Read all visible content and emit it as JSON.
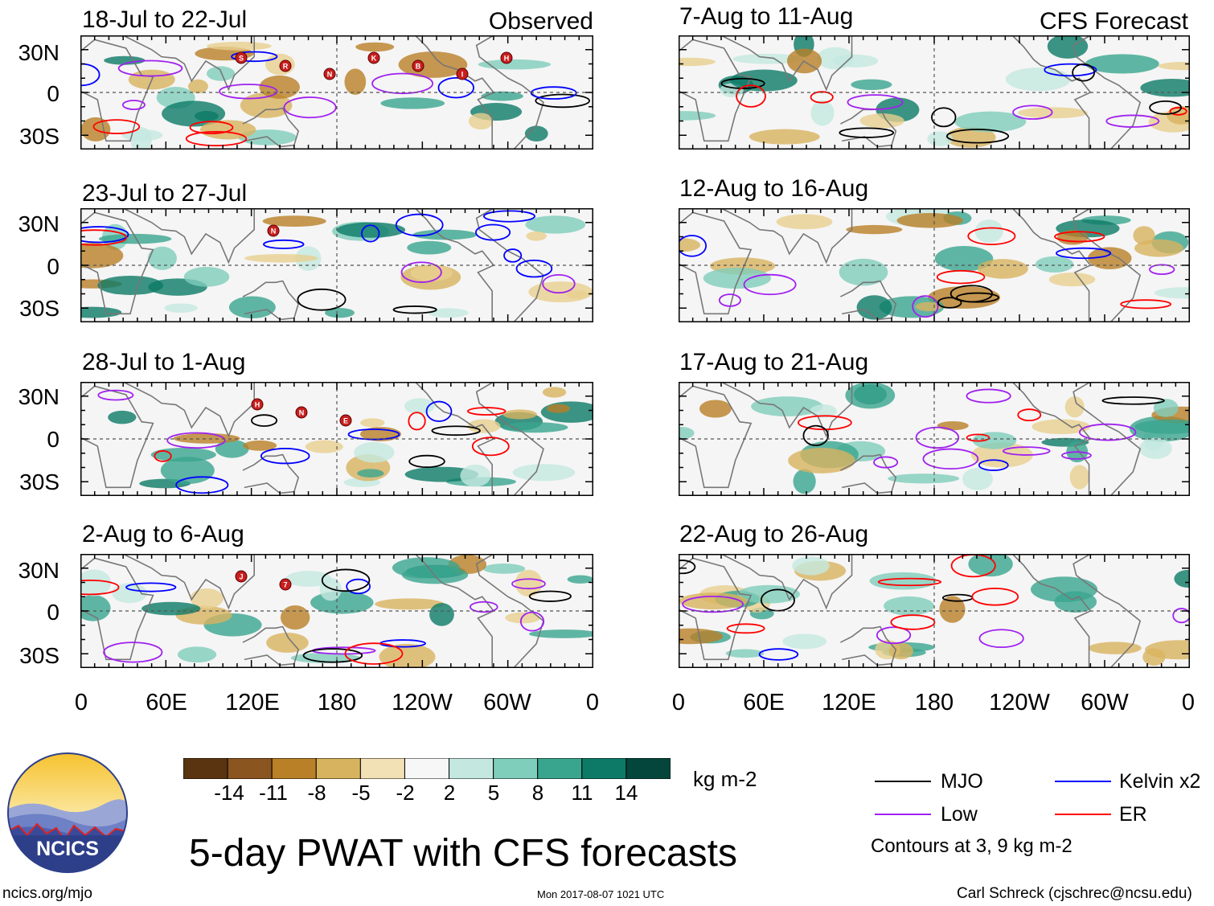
{
  "colors": {
    "mjo": "#000000",
    "low": "#a020f0",
    "kelvin": "#0000ff",
    "er": "#ff0000",
    "land": "#777777",
    "bg": "#f5f5f5",
    "scale": [
      "#5a3410",
      "#8b5520",
      "#b98027",
      "#d8b35f",
      "#f2e1b5",
      "#f7f7f7",
      "#c4e8e0",
      "#7fcdbb",
      "#3aa58f",
      "#0d7a67",
      "#04463c"
    ]
  },
  "panels": [
    {
      "title": "18-Jul to 22-Jul",
      "source": "Observed"
    },
    {
      "title": "7-Aug to 11-Aug",
      "source": "CFS Forecast"
    },
    {
      "title": "23-Jul to 27-Jul",
      "source": ""
    },
    {
      "title": "12-Aug to 16-Aug",
      "source": ""
    },
    {
      "title": "28-Jul to 1-Aug",
      "source": ""
    },
    {
      "title": "17-Aug to 21-Aug",
      "source": ""
    },
    {
      "title": "2-Aug to 6-Aug",
      "source": ""
    },
    {
      "title": "22-Aug to 26-Aug",
      "source": ""
    }
  ],
  "storm_markers": [
    [
      "S",
      "R",
      "N",
      "K",
      "B",
      "I",
      "H"
    ],
    [],
    [
      "N"
    ],
    [],
    [
      "H",
      "N",
      "E"
    ],
    [],
    [
      "J",
      "7"
    ],
    []
  ],
  "lat_labels": [
    "30N",
    "0",
    "30S"
  ],
  "lon_labels": [
    "0",
    "60E",
    "120E",
    "180",
    "120W",
    "60W",
    "0"
  ],
  "scale": {
    "ticks": [
      "-14",
      "-11",
      "-8",
      "-5",
      "-2",
      "2",
      "5",
      "8",
      "11",
      "14"
    ],
    "unit": "kg m-2"
  },
  "legend": {
    "mjo": "MJO",
    "kelvin": "Kelvin x2",
    "low": "Low",
    "er": "ER",
    "note": "Contours at 3, 9 kg m-2"
  },
  "logo_text": "NCICS",
  "main_title": "5-day PWAT with CFS forecasts",
  "footer": {
    "url": "ncics.org/mjo",
    "timestamp": "Mon 2017-08-07 1021 UTC",
    "credit": "Carl Schreck (cjschrec@ncsu.edu)"
  }
}
